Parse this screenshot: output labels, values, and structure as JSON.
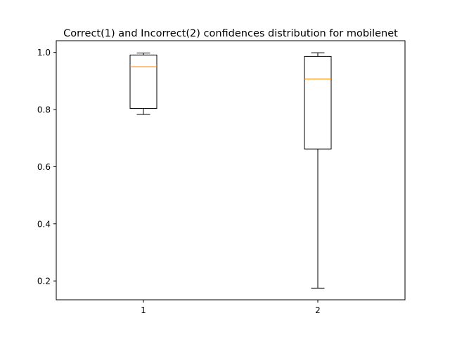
{
  "chart_data": {
    "type": "boxplot",
    "title": "Correct(1) and Incorrect(2) confidences distribution for mobilenet",
    "xlabel": "",
    "ylabel": "",
    "categories": [
      "1",
      "2"
    ],
    "boxes": [
      {
        "label": "1",
        "whisker_low": 0.783,
        "q1": 0.804,
        "median": 0.95,
        "q3": 0.991,
        "whisker_high": 0.998
      },
      {
        "label": "2",
        "whisker_low": 0.175,
        "q1": 0.662,
        "median": 0.907,
        "q3": 0.986,
        "whisker_high": 0.999
      }
    ],
    "xlim": [
      0.5,
      2.5
    ],
    "ylim": [
      0.134,
      1.041
    ],
    "yticks": [
      "0.2",
      "0.4",
      "0.6",
      "0.8",
      "1.0"
    ],
    "grid": false,
    "colors": {
      "box": "#000000",
      "median": "#ff7f0e",
      "background": "#ffffff"
    }
  }
}
